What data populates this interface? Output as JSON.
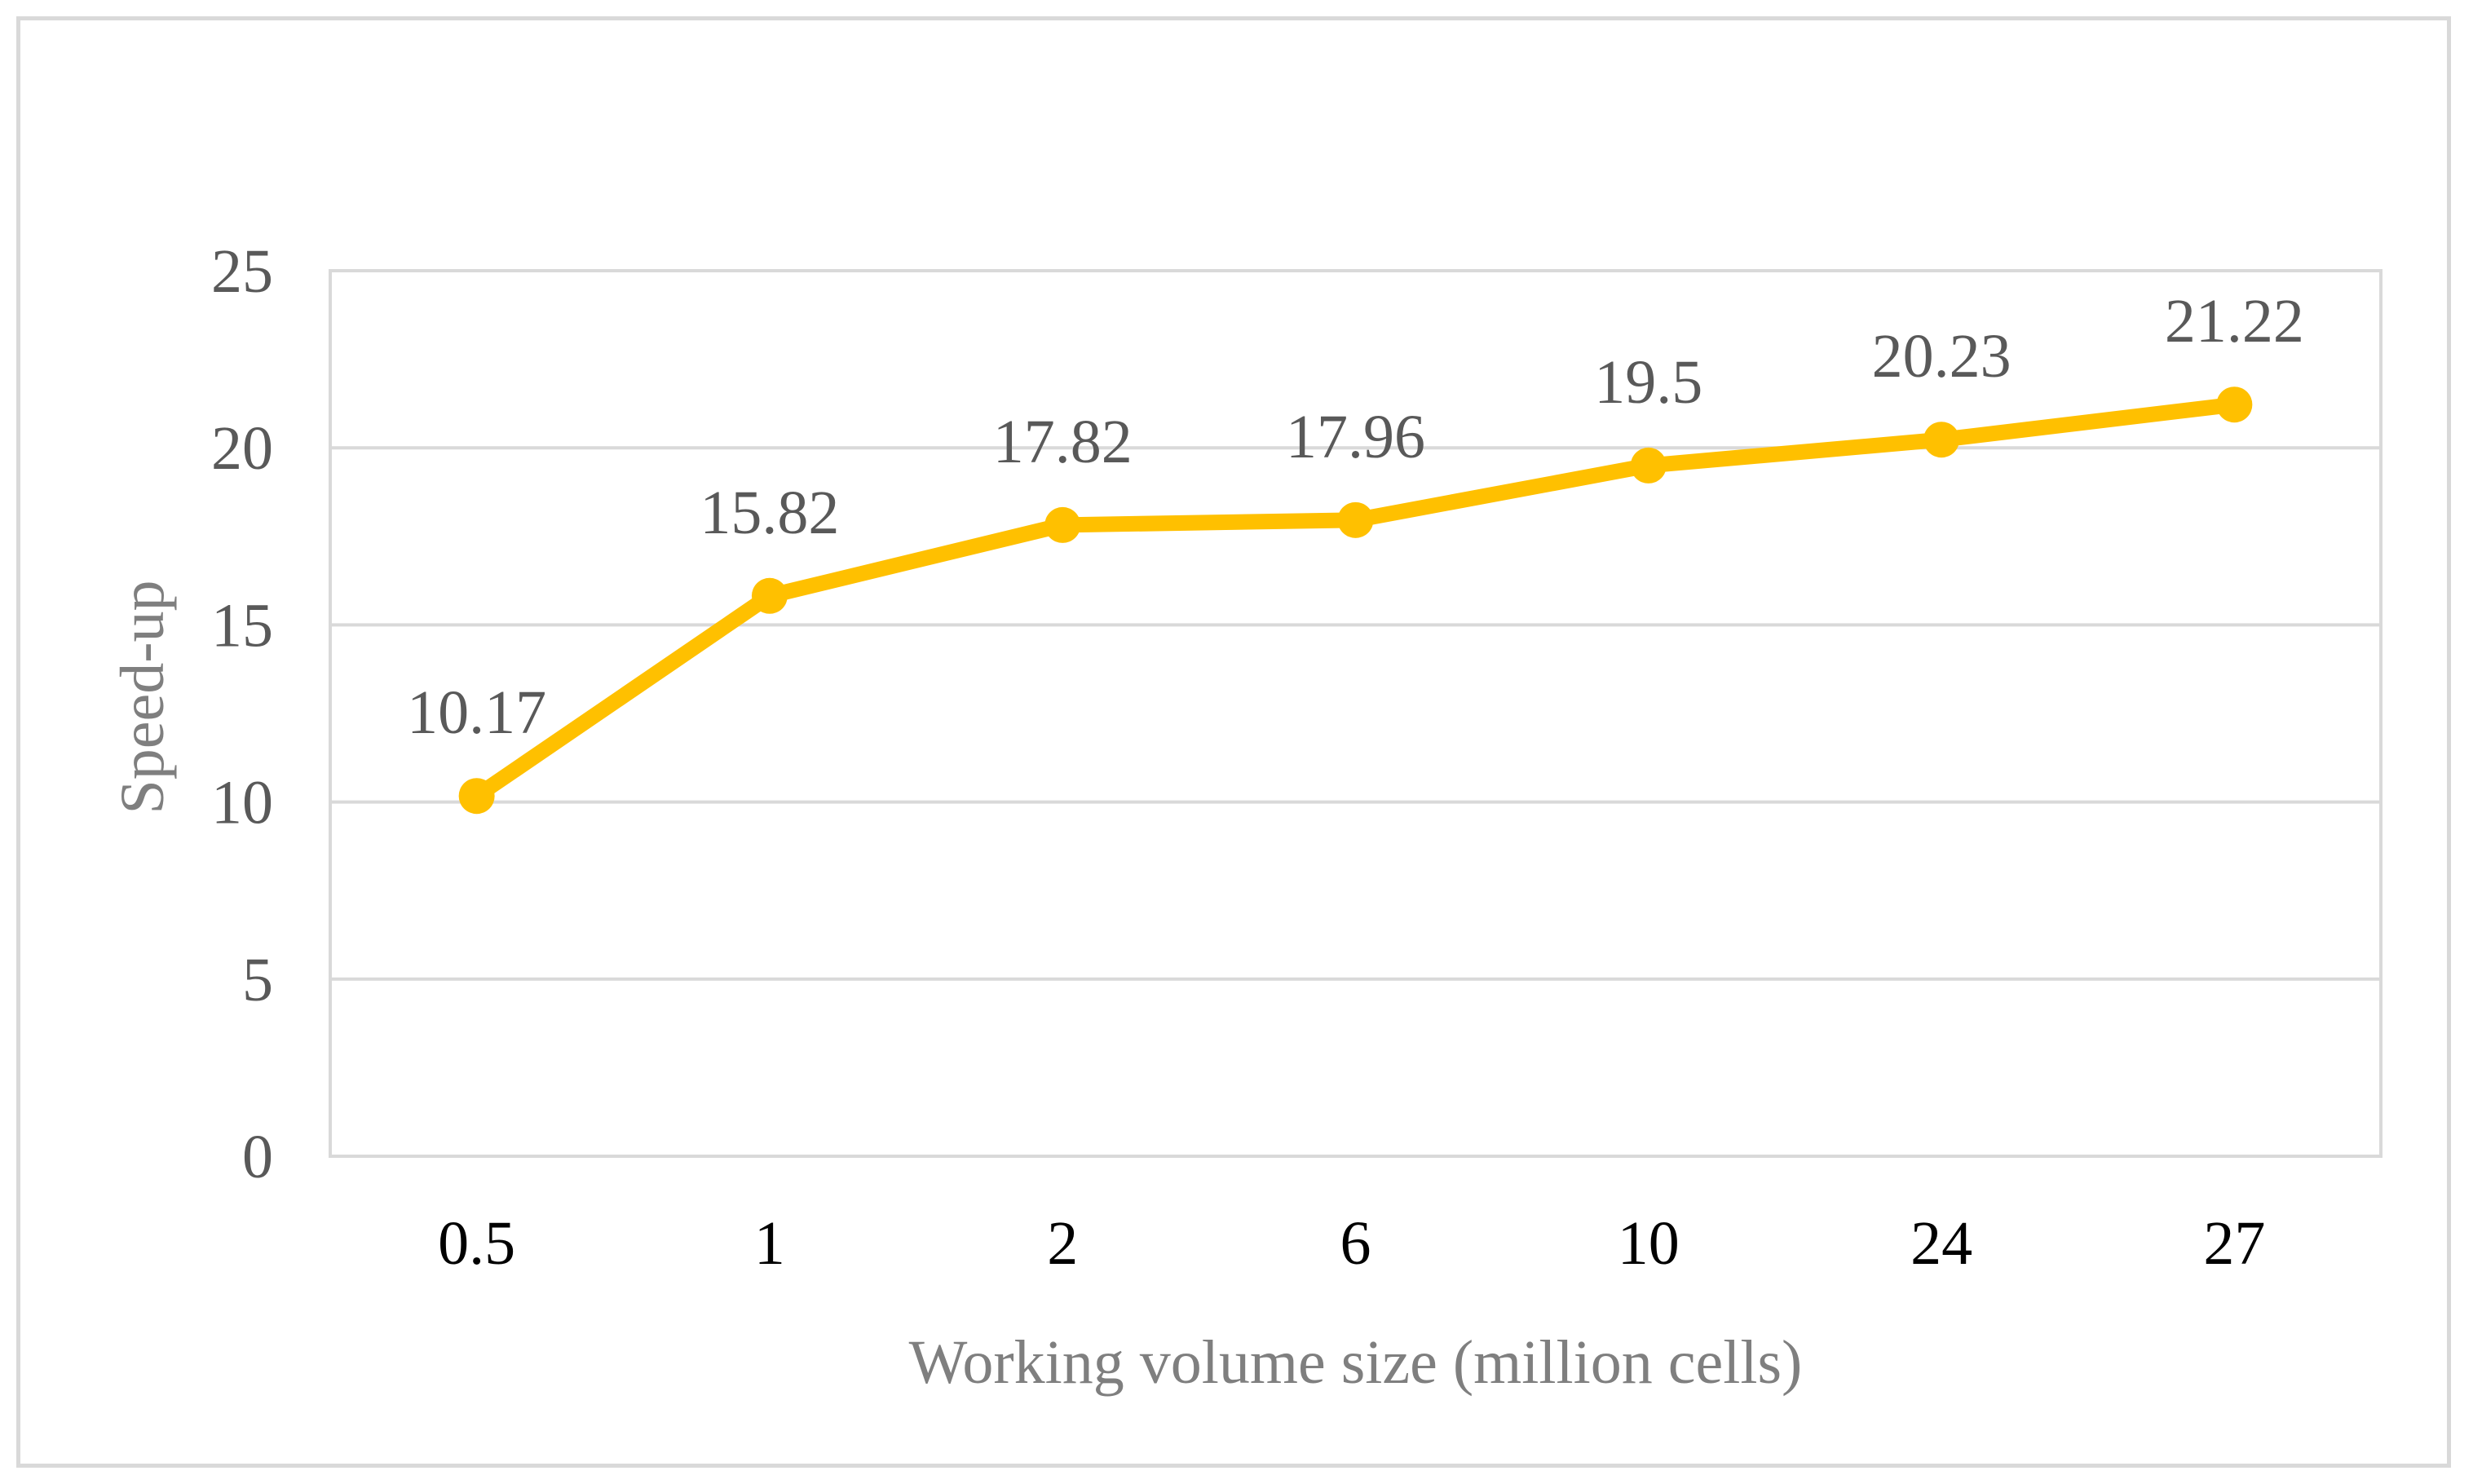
{
  "chart_data": {
    "type": "line",
    "title": "",
    "xlabel": "Working volume size (million cells)",
    "ylabel": "Speed-up",
    "categories": [
      "0.5",
      "1",
      "2",
      "6",
      "10",
      "24",
      "27"
    ],
    "series": [
      {
        "name": "Speed-up",
        "values": [
          10.17,
          15.82,
          17.82,
          17.96,
          19.5,
          20.23,
          21.22
        ],
        "data_labels": [
          "10.17",
          "15.82",
          "17.82",
          "17.96",
          "19.5",
          "20.23",
          "21.22"
        ]
      }
    ],
    "ylim": [
      0,
      25
    ],
    "yticks": [
      0,
      5,
      10,
      15,
      20,
      25
    ],
    "ytick_labels": [
      "0",
      "5",
      "10",
      "15",
      "20",
      "25"
    ],
    "grid": true,
    "legend": "none",
    "colors": {
      "line": "#ffc000",
      "grid": "#d9d9d9",
      "frame": "#d9d9d9"
    }
  }
}
